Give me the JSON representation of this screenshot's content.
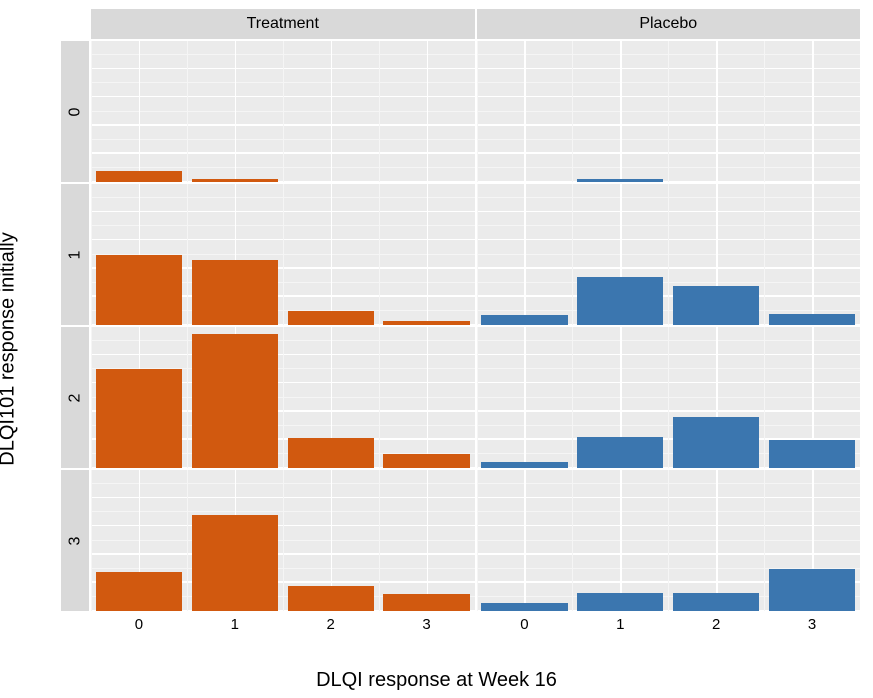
{
  "chart": {
    "type": "faceted-bar",
    "x_title": "DLQI response at Week 16",
    "y_title": "DLQI101 response initially",
    "title_fontsize": 20,
    "strip_fontsize": 16,
    "tick_fontsize": 15,
    "panel_background": "#ebebeb",
    "strip_background": "#d9d9d9",
    "grid_major_color": "#ffffff",
    "grid_minor_color": "#f5f5f5",
    "bar_width": 0.9,
    "n_major_h": 5,
    "n_minor_h": 4,
    "columns": [
      {
        "label": "Treatment",
        "color": "#d1590f"
      },
      {
        "label": "Placebo",
        "color": "#3b76af"
      }
    ],
    "rows": [
      {
        "label": "0"
      },
      {
        "label": "1"
      },
      {
        "label": "2"
      },
      {
        "label": "3"
      }
    ],
    "x_categories": [
      "0",
      "1",
      "2",
      "3"
    ],
    "y_max": 1.0,
    "panels": [
      [
        {
          "values": [
            0.08,
            0.02,
            0.0,
            0.0
          ]
        },
        {
          "values": [
            0.0,
            0.02,
            0.0,
            0.0
          ]
        }
      ],
      [
        {
          "values": [
            0.5,
            0.46,
            0.1,
            0.03
          ]
        },
        {
          "values": [
            0.07,
            0.34,
            0.28,
            0.08
          ]
        }
      ],
      [
        {
          "values": [
            0.7,
            0.95,
            0.21,
            0.1
          ]
        },
        {
          "values": [
            0.04,
            0.22,
            0.36,
            0.2
          ]
        }
      ],
      [
        {
          "values": [
            0.28,
            0.68,
            0.18,
            0.12
          ]
        },
        {
          "values": [
            0.06,
            0.13,
            0.13,
            0.3
          ]
        }
      ]
    ]
  }
}
